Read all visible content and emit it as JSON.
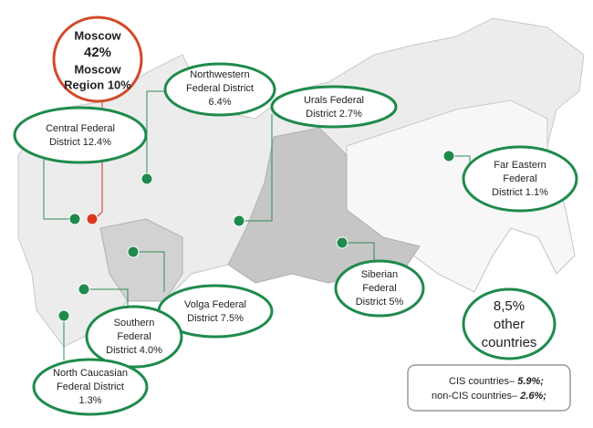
{
  "callouts": {
    "moscow": [
      "Moscow",
      "42%",
      "Moscow",
      "Region 10%"
    ],
    "northwestern": [
      "Northwestern",
      "Federal District",
      "6.4%"
    ],
    "urals": [
      "Urals Federal",
      "District 2.7%"
    ],
    "central": [
      "Central Federal",
      "District 12.4%"
    ],
    "far_eastern": [
      "Far Eastern",
      "Federal",
      "District 1.1%"
    ],
    "siberian": [
      "Siberian",
      "Federal",
      "District 5%"
    ],
    "volga": [
      "Volga Federal",
      "District 7.5%"
    ],
    "southern": [
      "Southern",
      "Federal",
      "District 4.0%"
    ],
    "north_caucasian": [
      "North Caucasian",
      "Federal District",
      "1.3%"
    ],
    "other": [
      "8,5%",
      "other",
      "countries"
    ]
  },
  "legend_box": {
    "cis": {
      "label": "CIS countries– ",
      "value": "5.9%;"
    },
    "non_cis": {
      "label": "non-CIS countries– ",
      "value": "2.6%;"
    }
  }
}
